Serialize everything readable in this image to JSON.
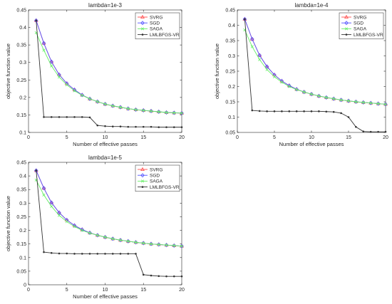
{
  "chart_data": [
    {
      "type": "line",
      "title": "lambda=1e-3",
      "xlabel": "Number of effective passes",
      "ylabel": "objective function value",
      "xlim": [
        0,
        20
      ],
      "ylim": [
        0.1,
        0.45
      ],
      "xticks": [
        0,
        5,
        10,
        15,
        20
      ],
      "yticks": [
        0.1,
        0.15,
        0.2,
        0.25,
        0.3,
        0.35,
        0.4,
        0.45
      ],
      "ytick_labels": [
        "0.1",
        "0.15",
        "0.2",
        "0.25",
        "0.3",
        "0.35",
        "0.4",
        "0.45"
      ],
      "grid": false,
      "legend": "top-right",
      "series": [
        {
          "name": "SVRG",
          "color": "#ff4d4d",
          "marker": "triangle",
          "x": [
            1,
            2,
            3,
            4,
            5,
            6,
            7,
            8,
            9,
            10,
            11,
            12,
            13,
            14,
            15,
            16,
            17,
            18,
            19,
            20
          ],
          "values": [
            0.42,
            0.355,
            0.302,
            0.265,
            0.24,
            0.222,
            0.207,
            0.196,
            0.188,
            0.181,
            0.176,
            0.172,
            0.168,
            0.165,
            0.163,
            0.161,
            0.159,
            0.157,
            0.156,
            0.155
          ]
        },
        {
          "name": "SGD",
          "color": "#5555ff",
          "marker": "diamond",
          "x": [
            1,
            2,
            3,
            4,
            5,
            6,
            7,
            8,
            9,
            10,
            11,
            12,
            13,
            14,
            15,
            16,
            17,
            18,
            19,
            20
          ],
          "values": [
            0.42,
            0.355,
            0.302,
            0.265,
            0.24,
            0.222,
            0.207,
            0.196,
            0.188,
            0.181,
            0.176,
            0.172,
            0.168,
            0.165,
            0.163,
            0.161,
            0.159,
            0.157,
            0.156,
            0.155
          ]
        },
        {
          "name": "SAGA",
          "color": "#66ee66",
          "marker": "x",
          "x": [
            1,
            2,
            3,
            4,
            5,
            6,
            7,
            8,
            9,
            10,
            11,
            12,
            13,
            14,
            15,
            16,
            17,
            18,
            19,
            20
          ],
          "values": [
            0.385,
            0.335,
            0.29,
            0.258,
            0.236,
            0.219,
            0.206,
            0.196,
            0.188,
            0.181,
            0.176,
            0.172,
            0.168,
            0.165,
            0.163,
            0.161,
            0.159,
            0.157,
            0.156,
            0.155
          ]
        },
        {
          "name": "LMLBFGS-VR",
          "color": "#333333",
          "marker": "dot",
          "x": [
            1,
            2,
            3,
            4,
            5,
            6,
            7,
            8,
            9,
            10,
            11,
            12,
            13,
            14,
            15,
            16,
            17,
            18,
            19,
            20
          ],
          "values": [
            0.42,
            0.144,
            0.144,
            0.144,
            0.144,
            0.144,
            0.144,
            0.143,
            0.12,
            0.118,
            0.117,
            0.117,
            0.116,
            0.116,
            0.116,
            0.116,
            0.115,
            0.115,
            0.115,
            0.115
          ]
        }
      ]
    },
    {
      "type": "line",
      "title": "lambda=1e-4",
      "xlabel": "Number of effective passes",
      "ylabel": "objective function value",
      "xlim": [
        0,
        20
      ],
      "ylim": [
        0.05,
        0.45
      ],
      "xticks": [
        0,
        5,
        10,
        15,
        20
      ],
      "yticks": [
        0.05,
        0.1,
        0.15,
        0.2,
        0.25,
        0.3,
        0.35,
        0.4,
        0.45
      ],
      "ytick_labels": [
        "0.05",
        "0.1",
        "0.15",
        "0.2",
        "0.25",
        "0.3",
        "0.35",
        "0.4",
        "0.45"
      ],
      "grid": false,
      "legend": "top-right",
      "series": [
        {
          "name": "SVRG",
          "color": "#ff4d4d",
          "marker": "triangle",
          "x": [
            1,
            2,
            3,
            4,
            5,
            6,
            7,
            8,
            9,
            10,
            11,
            12,
            13,
            14,
            15,
            16,
            17,
            18,
            19,
            20
          ],
          "values": [
            0.42,
            0.355,
            0.302,
            0.265,
            0.238,
            0.218,
            0.203,
            0.191,
            0.182,
            0.175,
            0.169,
            0.164,
            0.16,
            0.156,
            0.153,
            0.15,
            0.148,
            0.146,
            0.144,
            0.142
          ]
        },
        {
          "name": "SGD",
          "color": "#5555ff",
          "marker": "diamond",
          "x": [
            1,
            2,
            3,
            4,
            5,
            6,
            7,
            8,
            9,
            10,
            11,
            12,
            13,
            14,
            15,
            16,
            17,
            18,
            19,
            20
          ],
          "values": [
            0.42,
            0.355,
            0.302,
            0.265,
            0.238,
            0.218,
            0.203,
            0.191,
            0.182,
            0.175,
            0.169,
            0.164,
            0.16,
            0.156,
            0.153,
            0.15,
            0.148,
            0.146,
            0.144,
            0.142
          ]
        },
        {
          "name": "SAGA",
          "color": "#66ee66",
          "marker": "x",
          "x": [
            1,
            2,
            3,
            4,
            5,
            6,
            7,
            8,
            9,
            10,
            11,
            12,
            13,
            14,
            15,
            16,
            17,
            18,
            19,
            20
          ],
          "values": [
            0.385,
            0.33,
            0.288,
            0.255,
            0.232,
            0.214,
            0.2,
            0.19,
            0.182,
            0.175,
            0.169,
            0.164,
            0.16,
            0.156,
            0.153,
            0.15,
            0.148,
            0.146,
            0.144,
            0.142
          ]
        },
        {
          "name": "LMLBFGS-VR",
          "color": "#333333",
          "marker": "dot",
          "x": [
            1,
            2,
            3,
            4,
            5,
            6,
            7,
            8,
            9,
            10,
            11,
            12,
            13,
            14,
            15,
            16,
            17,
            18,
            19,
            20
          ],
          "values": [
            0.42,
            0.122,
            0.12,
            0.119,
            0.119,
            0.119,
            0.119,
            0.119,
            0.119,
            0.119,
            0.119,
            0.118,
            0.117,
            0.113,
            0.1,
            0.068,
            0.053,
            0.052,
            0.052,
            0.052
          ]
        }
      ]
    },
    {
      "type": "line",
      "title": "lambda=1e-5",
      "xlabel": "Number of effective passes",
      "ylabel": "objective function value",
      "xlim": [
        0,
        20
      ],
      "ylim": [
        0,
        0.45
      ],
      "xticks": [
        0,
        5,
        10,
        15,
        20
      ],
      "yticks": [
        0,
        0.05,
        0.1,
        0.15,
        0.2,
        0.25,
        0.3,
        0.35,
        0.4,
        0.45
      ],
      "ytick_labels": [
        "0",
        "0.05",
        "0.1",
        "0.15",
        "0.2",
        "0.25",
        "0.3",
        "0.35",
        "0.4",
        "0.45"
      ],
      "grid": false,
      "legend": "top-right",
      "series": [
        {
          "name": "SVRG",
          "color": "#ff4d4d",
          "marker": "triangle",
          "x": [
            1,
            2,
            3,
            4,
            5,
            6,
            7,
            8,
            9,
            10,
            11,
            12,
            13,
            14,
            15,
            16,
            17,
            18,
            19,
            20
          ],
          "values": [
            0.42,
            0.355,
            0.302,
            0.265,
            0.238,
            0.218,
            0.203,
            0.191,
            0.182,
            0.175,
            0.169,
            0.164,
            0.16,
            0.156,
            0.153,
            0.15,
            0.148,
            0.146,
            0.144,
            0.142
          ]
        },
        {
          "name": "SGD",
          "color": "#5555ff",
          "marker": "diamond",
          "x": [
            1,
            2,
            3,
            4,
            5,
            6,
            7,
            8,
            9,
            10,
            11,
            12,
            13,
            14,
            15,
            16,
            17,
            18,
            19,
            20
          ],
          "values": [
            0.42,
            0.355,
            0.302,
            0.265,
            0.238,
            0.218,
            0.203,
            0.191,
            0.182,
            0.175,
            0.169,
            0.164,
            0.16,
            0.156,
            0.153,
            0.15,
            0.148,
            0.146,
            0.144,
            0.142
          ]
        },
        {
          "name": "SAGA",
          "color": "#66ee66",
          "marker": "x",
          "x": [
            1,
            2,
            3,
            4,
            5,
            6,
            7,
            8,
            9,
            10,
            11,
            12,
            13,
            14,
            15,
            16,
            17,
            18,
            19,
            20
          ],
          "values": [
            0.385,
            0.33,
            0.288,
            0.255,
            0.232,
            0.214,
            0.2,
            0.19,
            0.182,
            0.175,
            0.169,
            0.164,
            0.16,
            0.156,
            0.153,
            0.15,
            0.148,
            0.146,
            0.144,
            0.142
          ]
        },
        {
          "name": "LMLBFGS-VR",
          "color": "#333333",
          "marker": "dot",
          "x": [
            1,
            2,
            3,
            4,
            5,
            6,
            7,
            8,
            9,
            10,
            11,
            12,
            13,
            14,
            15,
            16,
            17,
            18,
            19,
            20
          ],
          "values": [
            0.42,
            0.12,
            0.117,
            0.115,
            0.115,
            0.114,
            0.114,
            0.114,
            0.114,
            0.114,
            0.114,
            0.114,
            0.114,
            0.114,
            0.037,
            0.034,
            0.032,
            0.031,
            0.031,
            0.031
          ]
        }
      ]
    }
  ]
}
